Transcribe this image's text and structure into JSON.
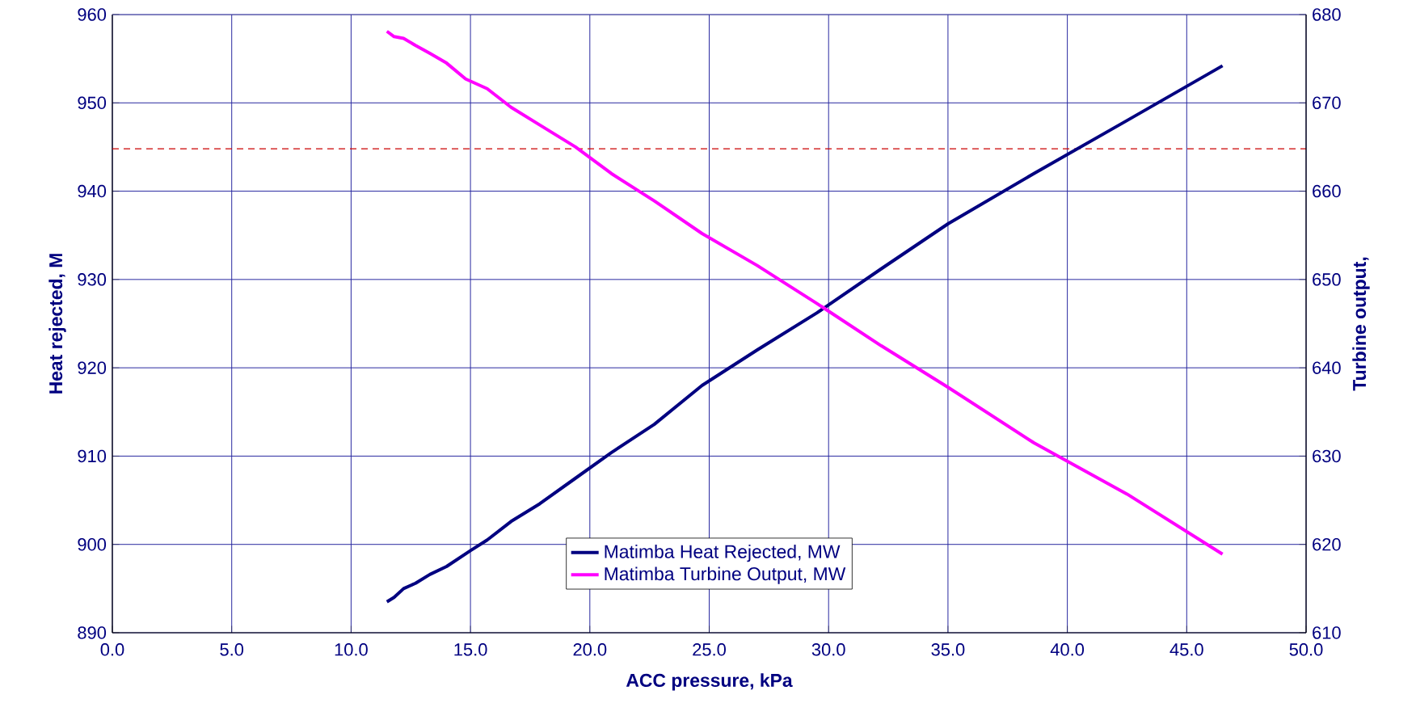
{
  "chart_data": {
    "type": "line",
    "xlabel": "ACC pressure, kPa",
    "ylabel": "Heat rejected, M",
    "y2label": "Turbine output,",
    "series": [
      {
        "name": "Matimba Heat Rejected, MW",
        "color": "#000080",
        "axis": "y",
        "x": [
          11.5,
          11.8,
          12.2,
          12.7,
          13.3,
          14.0,
          15.0,
          15.7,
          16.7,
          17.9,
          19.4,
          20.9,
          22.7,
          24.7,
          27.0,
          29.5,
          32.2,
          35.0,
          38.6,
          42.5,
          46.5
        ],
        "values": [
          893.5,
          894.0,
          895.0,
          895.6,
          896.6,
          897.5,
          899.3,
          900.5,
          902.6,
          904.6,
          907.5,
          910.4,
          913.6,
          918.0,
          922.0,
          926.2,
          931.2,
          936.3,
          942.0,
          948.0,
          954.2
        ]
      },
      {
        "name": "Matimba Turbine Output, MW",
        "color": "#ff00ff",
        "axis": "y2",
        "x": [
          11.5,
          11.8,
          12.2,
          12.7,
          13.3,
          14.0,
          14.8,
          15.7,
          16.7,
          17.9,
          19.4,
          20.9,
          22.7,
          24.7,
          27.0,
          29.5,
          32.2,
          35.0,
          38.6,
          42.5,
          46.5
        ],
        "values": [
          678.1,
          677.5,
          677.3,
          676.5,
          675.6,
          674.5,
          672.7,
          671.6,
          669.5,
          667.5,
          665.0,
          662.0,
          658.9,
          655.2,
          651.6,
          647.3,
          642.5,
          637.8,
          631.5,
          625.7,
          618.9
        ]
      }
    ],
    "xlim": [
      0,
      50
    ],
    "xticks": [
      {
        "value": 0,
        "label": "0.0"
      },
      {
        "value": 5,
        "label": "5.0"
      },
      {
        "value": 10,
        "label": "10.0"
      },
      {
        "value": 15,
        "label": "15.0"
      },
      {
        "value": 20,
        "label": "20.0"
      },
      {
        "value": 25,
        "label": "25.0"
      },
      {
        "value": 30,
        "label": "30.0"
      },
      {
        "value": 35,
        "label": "35.0"
      },
      {
        "value": 40,
        "label": "40.0"
      },
      {
        "value": 45,
        "label": "45.0"
      },
      {
        "value": 50,
        "label": "50.0"
      }
    ],
    "ylim": [
      890,
      960
    ],
    "yticks": [
      890,
      900,
      910,
      920,
      930,
      940,
      950,
      960
    ],
    "y2lim": [
      610,
      680
    ],
    "y2ticks": [
      610,
      620,
      630,
      640,
      650,
      660,
      670,
      680
    ],
    "ref_lines": [
      {
        "axis": "y",
        "value": 944.8,
        "color": "#cc0000",
        "line_style": "dashed"
      }
    ],
    "grid": true,
    "legend": "bottom",
    "line_style": "solid",
    "marker": "none"
  }
}
